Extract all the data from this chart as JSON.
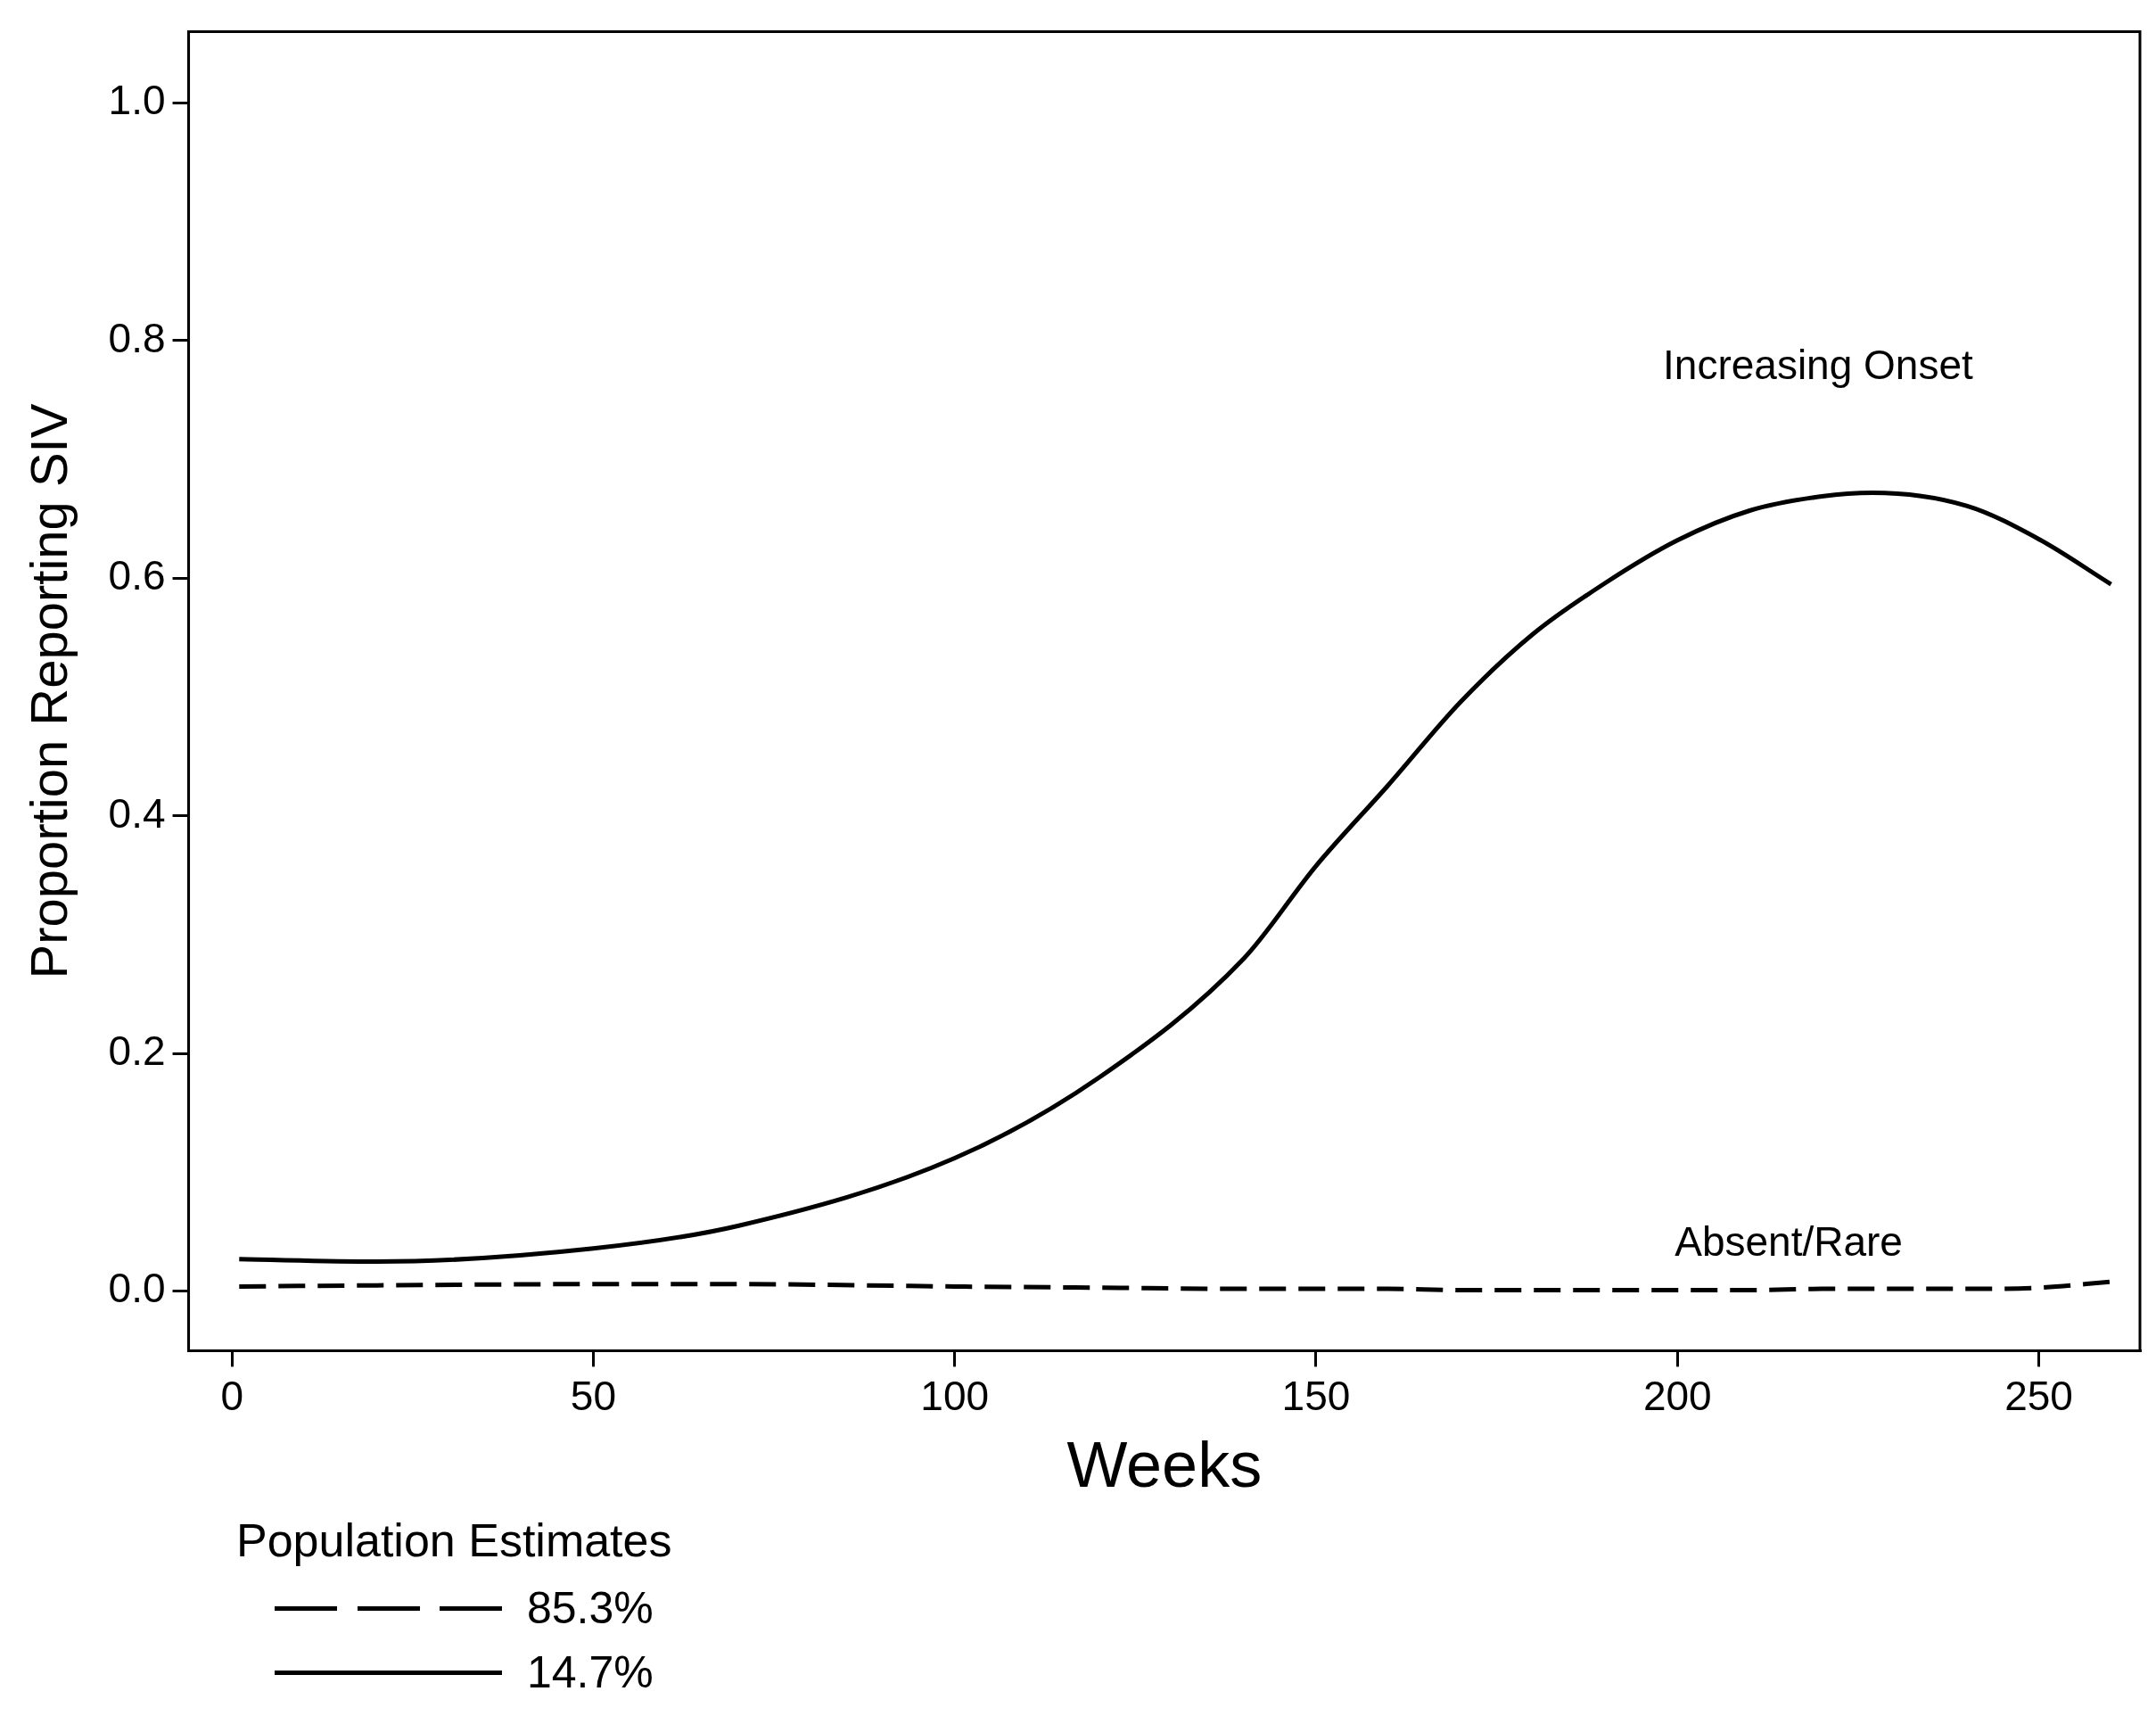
{
  "chart_data": {
    "type": "line",
    "xlabel": "Weeks",
    "ylabel": "Proportion Reporting SIV",
    "legend_title": "Population Estimates",
    "legend": "bottom",
    "grid": false,
    "marker": "none",
    "xlim": [
      -6,
      264
    ],
    "xticks": [
      0,
      50,
      100,
      150,
      200,
      250
    ],
    "ylim": [
      -0.05,
      1.06
    ],
    "yticks": [
      {
        "value": 0,
        "label": "0.0"
      },
      {
        "value": 0.2,
        "label": "0.2"
      },
      {
        "value": 0.4,
        "label": "0.4"
      },
      {
        "value": 0.6,
        "label": "0.6"
      },
      {
        "value": 0.8,
        "label": "0.8"
      },
      {
        "value": 1,
        "label": "1.0"
      }
    ],
    "x": [
      1,
      20,
      50,
      70,
      100,
      120,
      140,
      150,
      160,
      170,
      180,
      190,
      200,
      210,
      220,
      227,
      240,
      250,
      260
    ],
    "series": [
      {
        "name": "85.3%",
        "color": "#000000",
        "line_style": "dashed",
        "values": [
          0.004,
          0.005,
          0.006,
          0.006,
          0.004,
          0.003,
          0.002,
          0.002,
          0.002,
          0.001,
          0.001,
          0.001,
          0.001,
          0.001,
          0.002,
          0.002,
          0.002,
          0.003,
          0.008
        ]
      },
      {
        "name": "14.7%",
        "color": "#000000",
        "line_style": "solid",
        "values": [
          0.027,
          0.025,
          0.036,
          0.055,
          0.112,
          0.18,
          0.28,
          0.358,
          0.426,
          0.496,
          0.553,
          0.596,
          0.632,
          0.657,
          0.669,
          0.672,
          0.661,
          0.633,
          0.595
        ]
      }
    ],
    "annotations": [
      "Increasing Onset",
      "Absent/Rare"
    ]
  }
}
